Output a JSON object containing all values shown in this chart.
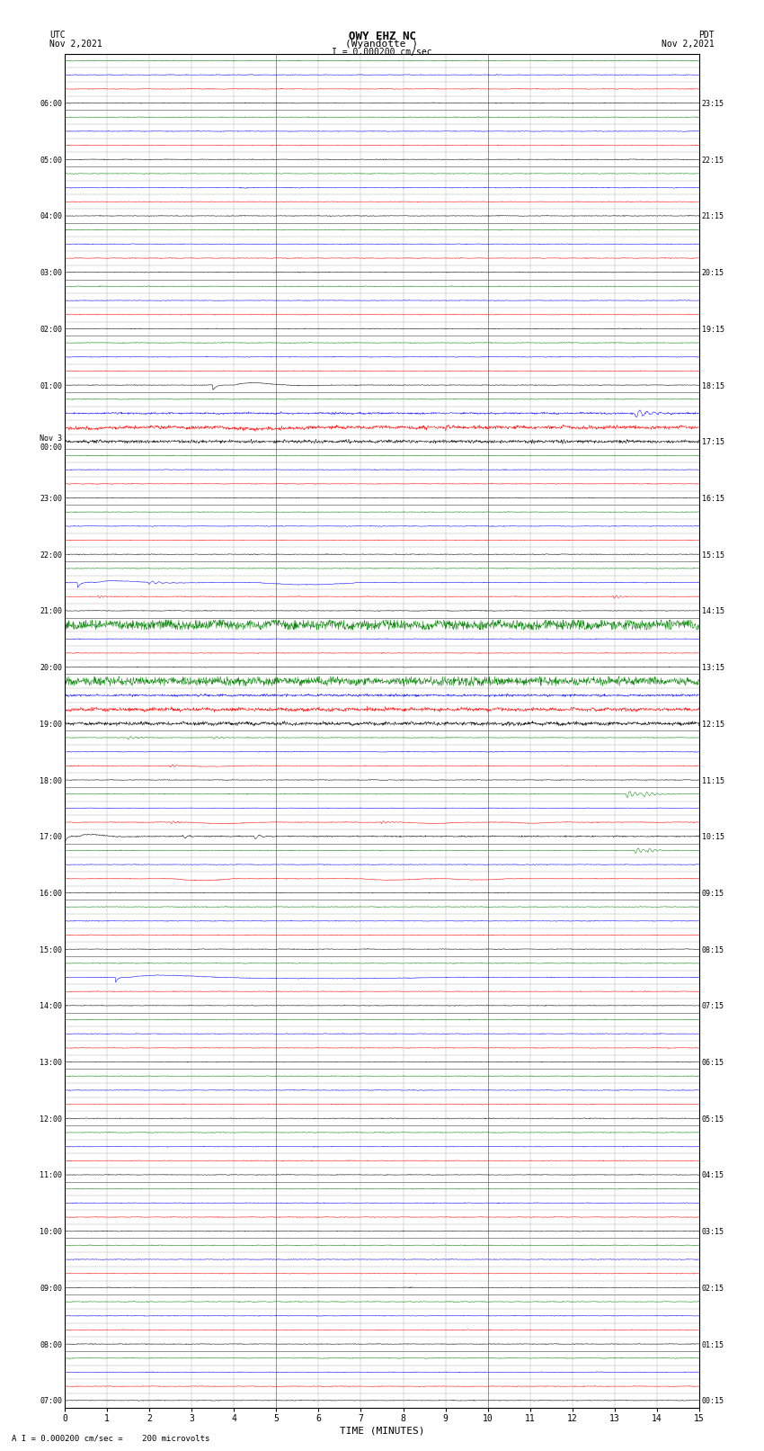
{
  "title_line1": "OWY EHZ NC",
  "title_line2": "(Wyandotte )",
  "scale_label": "I = 0.000200 cm/sec",
  "bottom_label": "A I = 0.000200 cm/sec =    200 microvolts",
  "left_header_line1": "UTC",
  "left_header_line2": "Nov 2,2021",
  "right_header_line1": "PDT",
  "right_header_line2": "Nov 2,2021",
  "xlabel": "TIME (MINUTES)",
  "x_ticks": [
    0,
    1,
    2,
    3,
    4,
    5,
    6,
    7,
    8,
    9,
    10,
    11,
    12,
    13,
    14,
    15
  ],
  "utc_labels": [
    "07:00",
    "",
    "",
    "",
    "08:00",
    "",
    "",
    "",
    "09:00",
    "",
    "",
    "",
    "10:00",
    "",
    "",
    "",
    "11:00",
    "",
    "",
    "",
    "12:00",
    "",
    "",
    "",
    "13:00",
    "",
    "",
    "",
    "14:00",
    "",
    "",
    "",
    "15:00",
    "",
    "",
    "",
    "16:00",
    "",
    "",
    "",
    "17:00",
    "",
    "",
    "",
    "18:00",
    "",
    "",
    "",
    "19:00",
    "",
    "",
    "",
    "20:00",
    "",
    "",
    "",
    "21:00",
    "",
    "",
    "",
    "22:00",
    "",
    "",
    "",
    "23:00",
    "",
    "",
    "",
    "Nov 3\n00:00",
    "",
    "",
    "",
    "01:00",
    "",
    "",
    "",
    "02:00",
    "",
    "",
    "",
    "03:00",
    "",
    "",
    "",
    "04:00",
    "",
    "",
    "",
    "05:00",
    "",
    "",
    "",
    "06:00",
    "",
    "",
    ""
  ],
  "pdt_labels": [
    "00:15",
    "",
    "",
    "",
    "01:15",
    "",
    "",
    "",
    "02:15",
    "",
    "",
    "",
    "03:15",
    "",
    "",
    "",
    "04:15",
    "",
    "",
    "",
    "05:15",
    "",
    "",
    "",
    "06:15",
    "",
    "",
    "",
    "07:15",
    "",
    "",
    "",
    "08:15",
    "",
    "",
    "",
    "09:15",
    "",
    "",
    "",
    "10:15",
    "",
    "",
    "",
    "11:15",
    "",
    "",
    "",
    "12:15",
    "",
    "",
    "",
    "13:15",
    "",
    "",
    "",
    "14:15",
    "",
    "",
    "",
    "15:15",
    "",
    "",
    "",
    "16:15",
    "",
    "",
    "",
    "17:15",
    "",
    "",
    "",
    "18:15",
    "",
    "",
    "",
    "19:15",
    "",
    "",
    "",
    "20:15",
    "",
    "",
    "",
    "21:15",
    "",
    "",
    "",
    "22:15",
    "",
    "",
    "",
    "23:15",
    "",
    "",
    ""
  ],
  "n_hours": 24,
  "n_traces_per_hour": 4,
  "minutes_per_row": 15,
  "bg_color": "#ffffff",
  "major_grid_color": "#666666",
  "minor_grid_color": "#aaaaaa",
  "trace_colors": [
    "black",
    "red",
    "blue",
    "green"
  ],
  "seed": 42,
  "fig_width": 8.5,
  "fig_height": 16.13,
  "dpi": 100
}
